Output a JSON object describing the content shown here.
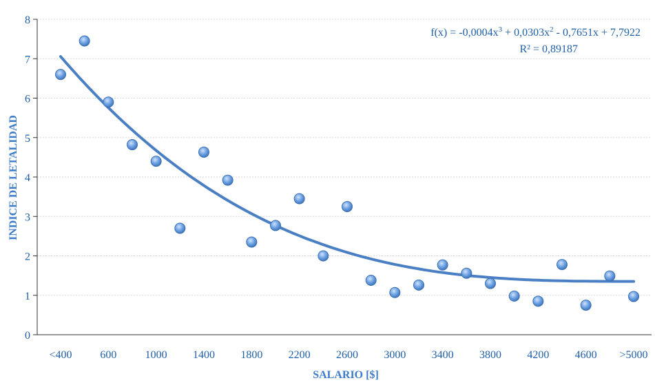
{
  "chart_data": {
    "type": "scatter",
    "title": "",
    "xlabel": "SALARIO [$]",
    "ylabel": "INDICE DE LETALIDAD",
    "x_tick_labels": [
      "<400",
      "600",
      "1000",
      "1400",
      "1800",
      "2200",
      "2600",
      "3000",
      "3400",
      "3800",
      "4200",
      "4600",
      ">5000"
    ],
    "y_ticks": [
      0,
      1,
      2,
      3,
      4,
      5,
      6,
      7,
      8
    ],
    "ylim": [
      0,
      8
    ],
    "xlim": [
      1,
      25
    ],
    "grid": true,
    "points": [
      {
        "x": 1,
        "y": 6.6
      },
      {
        "x": 2,
        "y": 7.45
      },
      {
        "x": 3,
        "y": 5.9
      },
      {
        "x": 4,
        "y": 4.82
      },
      {
        "x": 5,
        "y": 4.4
      },
      {
        "x": 6,
        "y": 2.7
      },
      {
        "x": 7,
        "y": 4.63
      },
      {
        "x": 8,
        "y": 3.92
      },
      {
        "x": 9,
        "y": 2.35
      },
      {
        "x": 10,
        "y": 2.77
      },
      {
        "x": 11,
        "y": 3.45
      },
      {
        "x": 12,
        "y": 2.0
      },
      {
        "x": 13,
        "y": 3.25
      },
      {
        "x": 14,
        "y": 1.38
      },
      {
        "x": 15,
        "y": 1.07
      },
      {
        "x": 16,
        "y": 1.26
      },
      {
        "x": 17,
        "y": 1.77
      },
      {
        "x": 18,
        "y": 1.56
      },
      {
        "x": 19,
        "y": 1.3
      },
      {
        "x": 20,
        "y": 0.98
      },
      {
        "x": 21,
        "y": 0.85
      },
      {
        "x": 22,
        "y": 1.78
      },
      {
        "x": 23,
        "y": 0.75
      },
      {
        "x": 24,
        "y": 1.49
      },
      {
        "x": 25,
        "y": 0.97
      }
    ],
    "trendline": {
      "type": "polynomial",
      "coefficients": [
        -0.0004,
        0.0303,
        -0.7651,
        7.7922
      ],
      "equation_lines": [
        "f(x) = -0,0004x",
        " + 0,0303x",
        " - 0,7651x + 7,7922"
      ],
      "equation_exponents": [
        "3",
        "2"
      ],
      "r_squared_text": "R² = 0,89187"
    },
    "colors": {
      "point_fill": "#6fa3e3",
      "point_stroke": "#3c6fb5",
      "trendline": "#4a80c3",
      "grid": "#d9d9d9",
      "text": "#1f5fa8"
    }
  }
}
